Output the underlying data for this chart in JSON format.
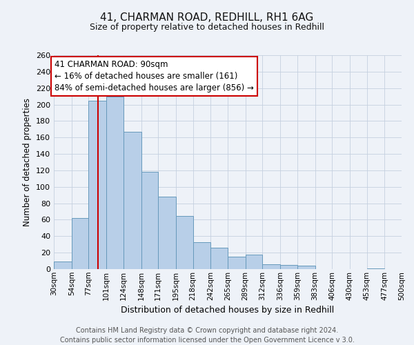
{
  "title": "41, CHARMAN ROAD, REDHILL, RH1 6AG",
  "subtitle": "Size of property relative to detached houses in Redhill",
  "xlabel": "Distribution of detached houses by size in Redhill",
  "ylabel": "Number of detached properties",
  "bin_edges": [
    30,
    54,
    77,
    101,
    124,
    148,
    171,
    195,
    218,
    242,
    265,
    289,
    312,
    336,
    359,
    383,
    406,
    430,
    453,
    477,
    500
  ],
  "counts": [
    9,
    62,
    205,
    210,
    167,
    118,
    88,
    65,
    33,
    26,
    15,
    18,
    6,
    5,
    4,
    0,
    0,
    0,
    1,
    0
  ],
  "bar_color": "#b8cfe8",
  "bar_edge_color": "#6699bb",
  "property_value": 90,
  "vline_color": "#cc0000",
  "annotation_title": "41 CHARMAN ROAD: 90sqm",
  "annotation_line1": "← 16% of detached houses are smaller (161)",
  "annotation_line2": "84% of semi-detached houses are larger (856) →",
  "annotation_box_color": "#ffffff",
  "annotation_box_edge": "#cc0000",
  "ylim": [
    0,
    260
  ],
  "yticks": [
    0,
    20,
    40,
    60,
    80,
    100,
    120,
    140,
    160,
    180,
    200,
    220,
    240,
    260
  ],
  "xtick_labels": [
    "30sqm",
    "54sqm",
    "77sqm",
    "101sqm",
    "124sqm",
    "148sqm",
    "171sqm",
    "195sqm",
    "218sqm",
    "242sqm",
    "265sqm",
    "289sqm",
    "312sqm",
    "336sqm",
    "359sqm",
    "383sqm",
    "406sqm",
    "430sqm",
    "453sqm",
    "477sqm",
    "500sqm"
  ],
  "bg_color": "#eef2f8",
  "footer_line1": "Contains HM Land Registry data © Crown copyright and database right 2024.",
  "footer_line2": "Contains public sector information licensed under the Open Government Licence v 3.0.",
  "grid_color": "#c5d0e0",
  "title_fontsize": 11,
  "subtitle_fontsize": 9,
  "ylabel_fontsize": 8.5,
  "xlabel_fontsize": 9,
  "ytick_fontsize": 8,
  "xtick_fontsize": 7.5,
  "footer_fontsize": 7,
  "annot_fontsize": 8.5
}
